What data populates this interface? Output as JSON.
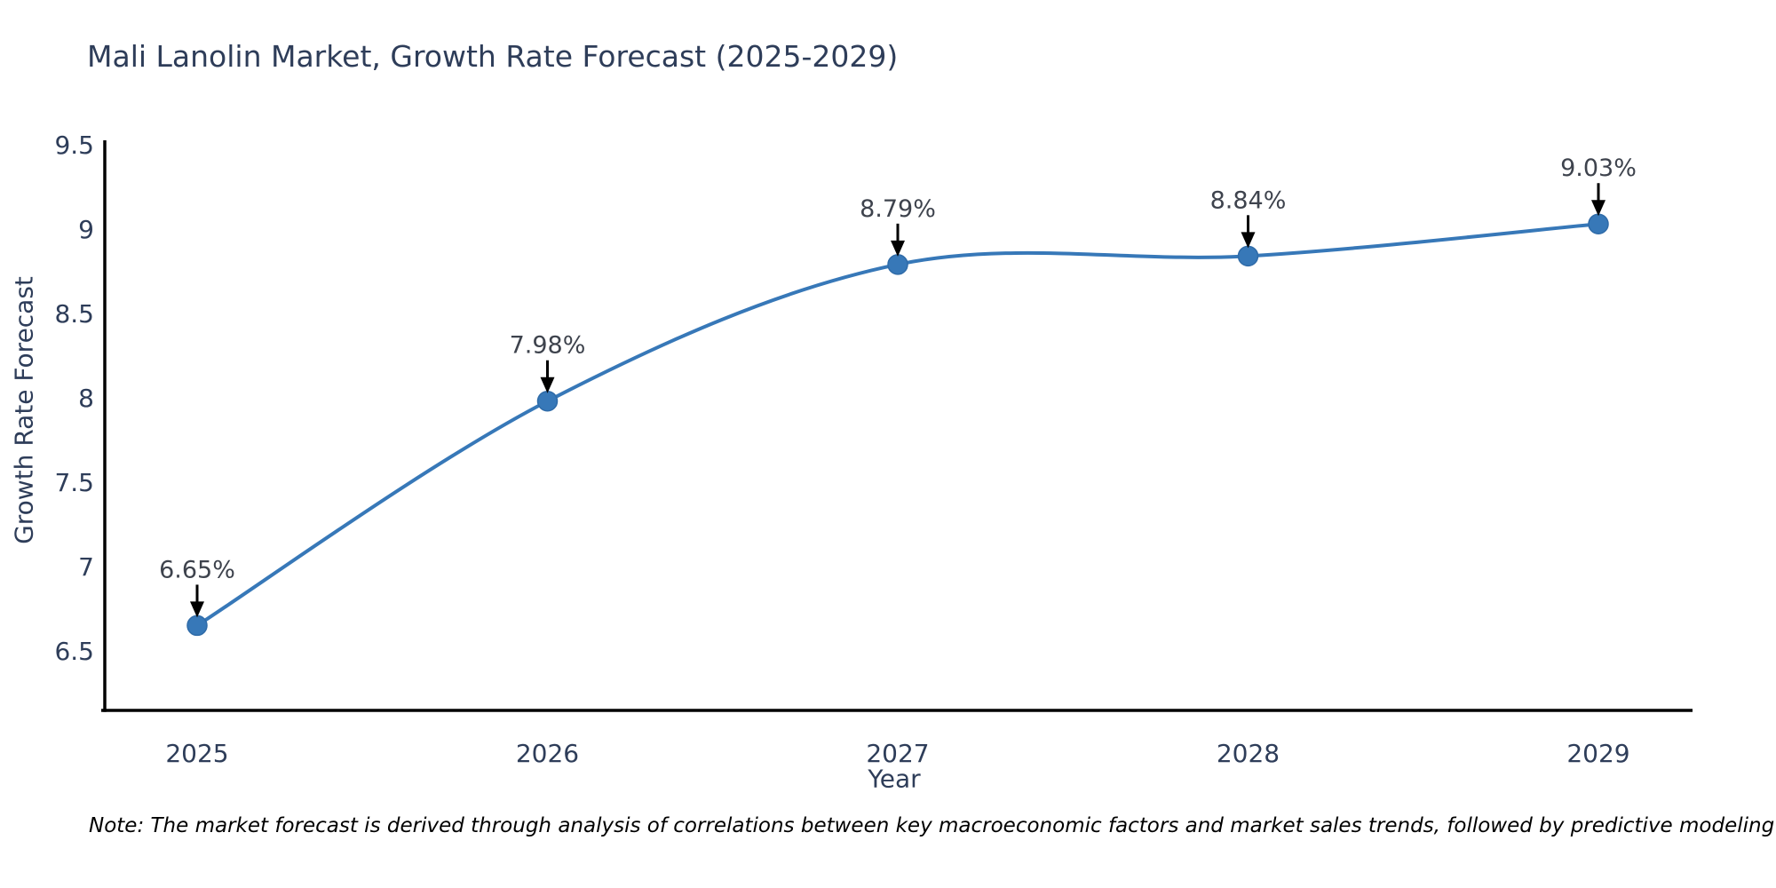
{
  "chart": {
    "title": "Mali Lanolin Market, Growth Rate Forecast (2025-2029)",
    "xlabel": "Year",
    "ylabel": "Growth Rate Forecast"
  },
  "note": "Note: The market forecast is derived through analysis of correlations between key macroeconomic factors and market sales trends, followed by predictive modeling to project future sales",
  "chart_data": {
    "type": "line",
    "title": "Mali Lanolin Market, Growth Rate Forecast (2025-2029)",
    "xlabel": "Year",
    "ylabel": "Growth Rate Forecast",
    "categories": [
      "2025",
      "2026",
      "2027",
      "2028",
      "2029"
    ],
    "series": [
      {
        "name": "Growth Rate Forecast",
        "values": [
          6.65,
          7.98,
          8.79,
          8.84,
          9.03
        ]
      }
    ],
    "point_labels": [
      "6.65%",
      "7.98%",
      "8.79%",
      "8.84%",
      "9.03%"
    ],
    "line_shape": "spline",
    "yticks": [
      6.5,
      7,
      7.5,
      8,
      8.5,
      9,
      9.5
    ],
    "ylim": [
      6.147,
      9.526
    ],
    "grid": false,
    "legend_visible": false,
    "annotation_arrows": "down-to-point",
    "colors": {
      "line": "#3778b8",
      "marker": "#3778b8",
      "marker_edge": "#2f6ba8",
      "axis": "#000000",
      "tick_text": "#2e3d59",
      "title_text": "#2e3d59",
      "annotation_text": "#3e434d",
      "arrow": "#000000",
      "note_text": "#000000",
      "background": "#ffffff"
    }
  }
}
